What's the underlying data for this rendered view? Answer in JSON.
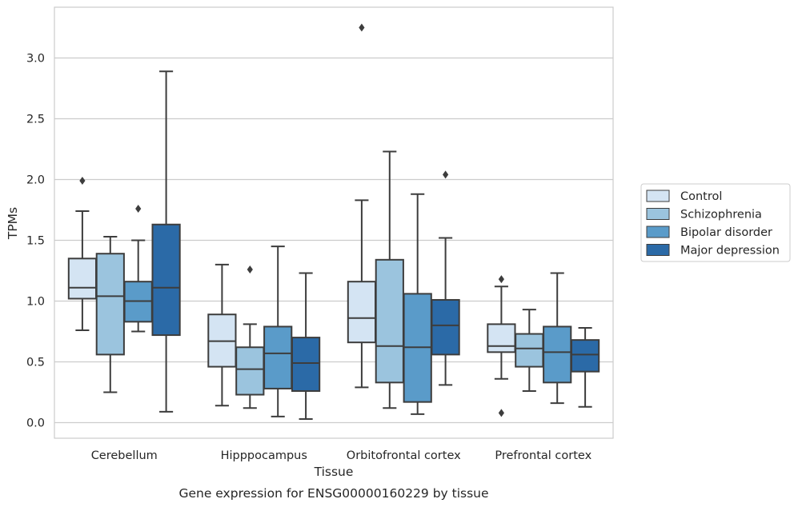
{
  "chart_data": {
    "type": "boxplot",
    "caption": "Gene expression for ENSG00000160229 by tissue",
    "xlabel": "Tissue",
    "ylabel": "TPMs",
    "ylim": [
      -0.12,
      3.37
    ],
    "yticks": [
      "0.0",
      "0.5",
      "1.0",
      "1.5",
      "2.0",
      "2.5",
      "3.0"
    ],
    "grid": true,
    "legend_position": "right",
    "categories": [
      "Cerebellum",
      "Hipppocampus",
      "Orbitofrontal cortex",
      "Prefrontal cortex"
    ],
    "series": [
      {
        "name": "Control",
        "color": "#d4e4f3",
        "boxes": [
          {
            "whislo": 0.76,
            "q1": 1.02,
            "med": 1.11,
            "q3": 1.35,
            "whishi": 1.74,
            "fliers": [
              1.99
            ]
          },
          {
            "whislo": 0.14,
            "q1": 0.46,
            "med": 0.67,
            "q3": 0.89,
            "whishi": 1.3,
            "fliers": []
          },
          {
            "whislo": 0.29,
            "q1": 0.66,
            "med": 0.86,
            "q3": 1.16,
            "whishi": 1.83,
            "fliers": [
              3.25
            ]
          },
          {
            "whislo": 0.36,
            "q1": 0.58,
            "med": 0.63,
            "q3": 0.81,
            "whishi": 1.12,
            "fliers": [
              1.18,
              0.08
            ]
          }
        ]
      },
      {
        "name": "Schizophrenia",
        "color": "#9bc4de",
        "boxes": [
          {
            "whislo": 0.25,
            "q1": 0.56,
            "med": 1.04,
            "q3": 1.39,
            "whishi": 1.53,
            "fliers": []
          },
          {
            "whislo": 0.12,
            "q1": 0.23,
            "med": 0.44,
            "q3": 0.62,
            "whishi": 0.81,
            "fliers": [
              1.26
            ]
          },
          {
            "whislo": 0.12,
            "q1": 0.33,
            "med": 0.63,
            "q3": 1.34,
            "whishi": 2.23,
            "fliers": []
          },
          {
            "whislo": 0.26,
            "q1": 0.46,
            "med": 0.61,
            "q3": 0.73,
            "whishi": 0.93,
            "fliers": []
          }
        ]
      },
      {
        "name": "Bipolar disorder",
        "color": "#5a9bc9",
        "boxes": [
          {
            "whislo": 0.75,
            "q1": 0.83,
            "med": 1.0,
            "q3": 1.16,
            "whishi": 1.5,
            "fliers": [
              1.76
            ]
          },
          {
            "whislo": 0.05,
            "q1": 0.28,
            "med": 0.57,
            "q3": 0.79,
            "whishi": 1.45,
            "fliers": []
          },
          {
            "whislo": 0.07,
            "q1": 0.17,
            "med": 0.62,
            "q3": 1.06,
            "whishi": 1.88,
            "fliers": []
          },
          {
            "whislo": 0.16,
            "q1": 0.33,
            "med": 0.58,
            "q3": 0.79,
            "whishi": 1.23,
            "fliers": []
          }
        ]
      },
      {
        "name": "Major depression",
        "color": "#2b6aa7",
        "boxes": [
          {
            "whislo": 0.09,
            "q1": 0.72,
            "med": 1.11,
            "q3": 1.63,
            "whishi": 2.89,
            "fliers": []
          },
          {
            "whislo": 0.03,
            "q1": 0.26,
            "med": 0.49,
            "q3": 0.7,
            "whishi": 1.23,
            "fliers": []
          },
          {
            "whislo": 0.31,
            "q1": 0.56,
            "med": 0.8,
            "q3": 1.01,
            "whishi": 1.52,
            "fliers": [
              2.04
            ]
          },
          {
            "whislo": 0.13,
            "q1": 0.42,
            "med": 0.56,
            "q3": 0.68,
            "whishi": 0.78,
            "fliers": []
          }
        ]
      }
    ]
  },
  "colors": {
    "edge": "#3d3d3d",
    "grid": "#cccccc",
    "frame": "#cccccc"
  }
}
